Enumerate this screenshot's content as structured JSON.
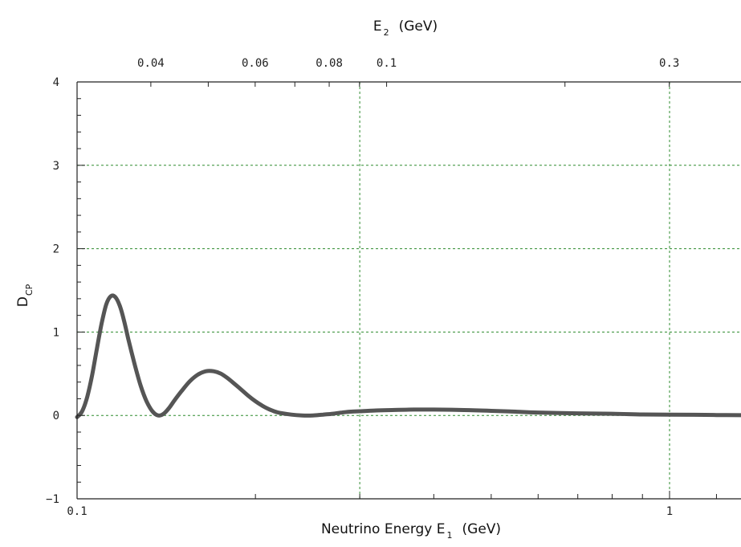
{
  "chart_data": {
    "type": "line",
    "title": "",
    "xlabel": {
      "main": "Neutrino Energy E",
      "sub": "1",
      "unit": "(GeV)"
    },
    "ylabel": {
      "main": "D",
      "sub": "CP"
    },
    "x2label": {
      "main": "E",
      "sub": "2",
      "unit": "(GeV)"
    },
    "x_scale": "log",
    "xlim": [
      0.1,
      1.32
    ],
    "ylim": [
      -1,
      4
    ],
    "grid": true,
    "grid_color": "#2e8b2e",
    "line_color": "#555555",
    "x_ticks": [
      {
        "value": 0.1,
        "label": "0.1"
      },
      {
        "value": 1,
        "label": "1"
      }
    ],
    "x2_ticks": [
      {
        "value": 0.04,
        "label": "0.04"
      },
      {
        "value": 0.06,
        "label": "0.06"
      },
      {
        "value": 0.08,
        "label": "0.08"
      },
      {
        "value": 0.1,
        "label": "0.1"
      },
      {
        "value": 0.3,
        "label": "0.3"
      }
    ],
    "x2_to_x1_factor": 3.33,
    "y_ticks": [
      {
        "value": -1,
        "label": "−1"
      },
      {
        "value": 0,
        "label": "0"
      },
      {
        "value": 1,
        "label": "1"
      },
      {
        "value": 2,
        "label": "2"
      },
      {
        "value": 3,
        "label": "3"
      },
      {
        "value": 4,
        "label": "4"
      }
    ],
    "series": [
      {
        "x": [
          0.1,
          0.102,
          0.104,
          0.106,
          0.108,
          0.11,
          0.112,
          0.114,
          0.116,
          0.118,
          0.12,
          0.122,
          0.125,
          0.128,
          0.131,
          0.134,
          0.137,
          0.14,
          0.143,
          0.146,
          0.15,
          0.155,
          0.16,
          0.165,
          0.17,
          0.175,
          0.18,
          0.185,
          0.19,
          0.195,
          0.2,
          0.205,
          0.21,
          0.215,
          0.22,
          0.23,
          0.24,
          0.25,
          0.26,
          0.27,
          0.28,
          0.29,
          0.3,
          0.32,
          0.34,
          0.37,
          0.4,
          0.45,
          0.5,
          0.55,
          0.6,
          0.7,
          0.8,
          0.9,
          1.0,
          1.1,
          1.2,
          1.32
        ],
        "y": [
          -0.02,
          0.05,
          0.22,
          0.48,
          0.8,
          1.1,
          1.33,
          1.43,
          1.42,
          1.32,
          1.14,
          0.92,
          0.62,
          0.36,
          0.17,
          0.05,
          0.0,
          0.02,
          0.09,
          0.18,
          0.29,
          0.41,
          0.49,
          0.53,
          0.53,
          0.5,
          0.44,
          0.37,
          0.3,
          0.23,
          0.17,
          0.12,
          0.08,
          0.05,
          0.03,
          0.01,
          0.0,
          0.0,
          0.01,
          0.02,
          0.035,
          0.045,
          0.05,
          0.06,
          0.065,
          0.07,
          0.07,
          0.065,
          0.055,
          0.045,
          0.035,
          0.025,
          0.02,
          0.012,
          0.01,
          0.008,
          0.005,
          0.003
        ]
      }
    ]
  }
}
